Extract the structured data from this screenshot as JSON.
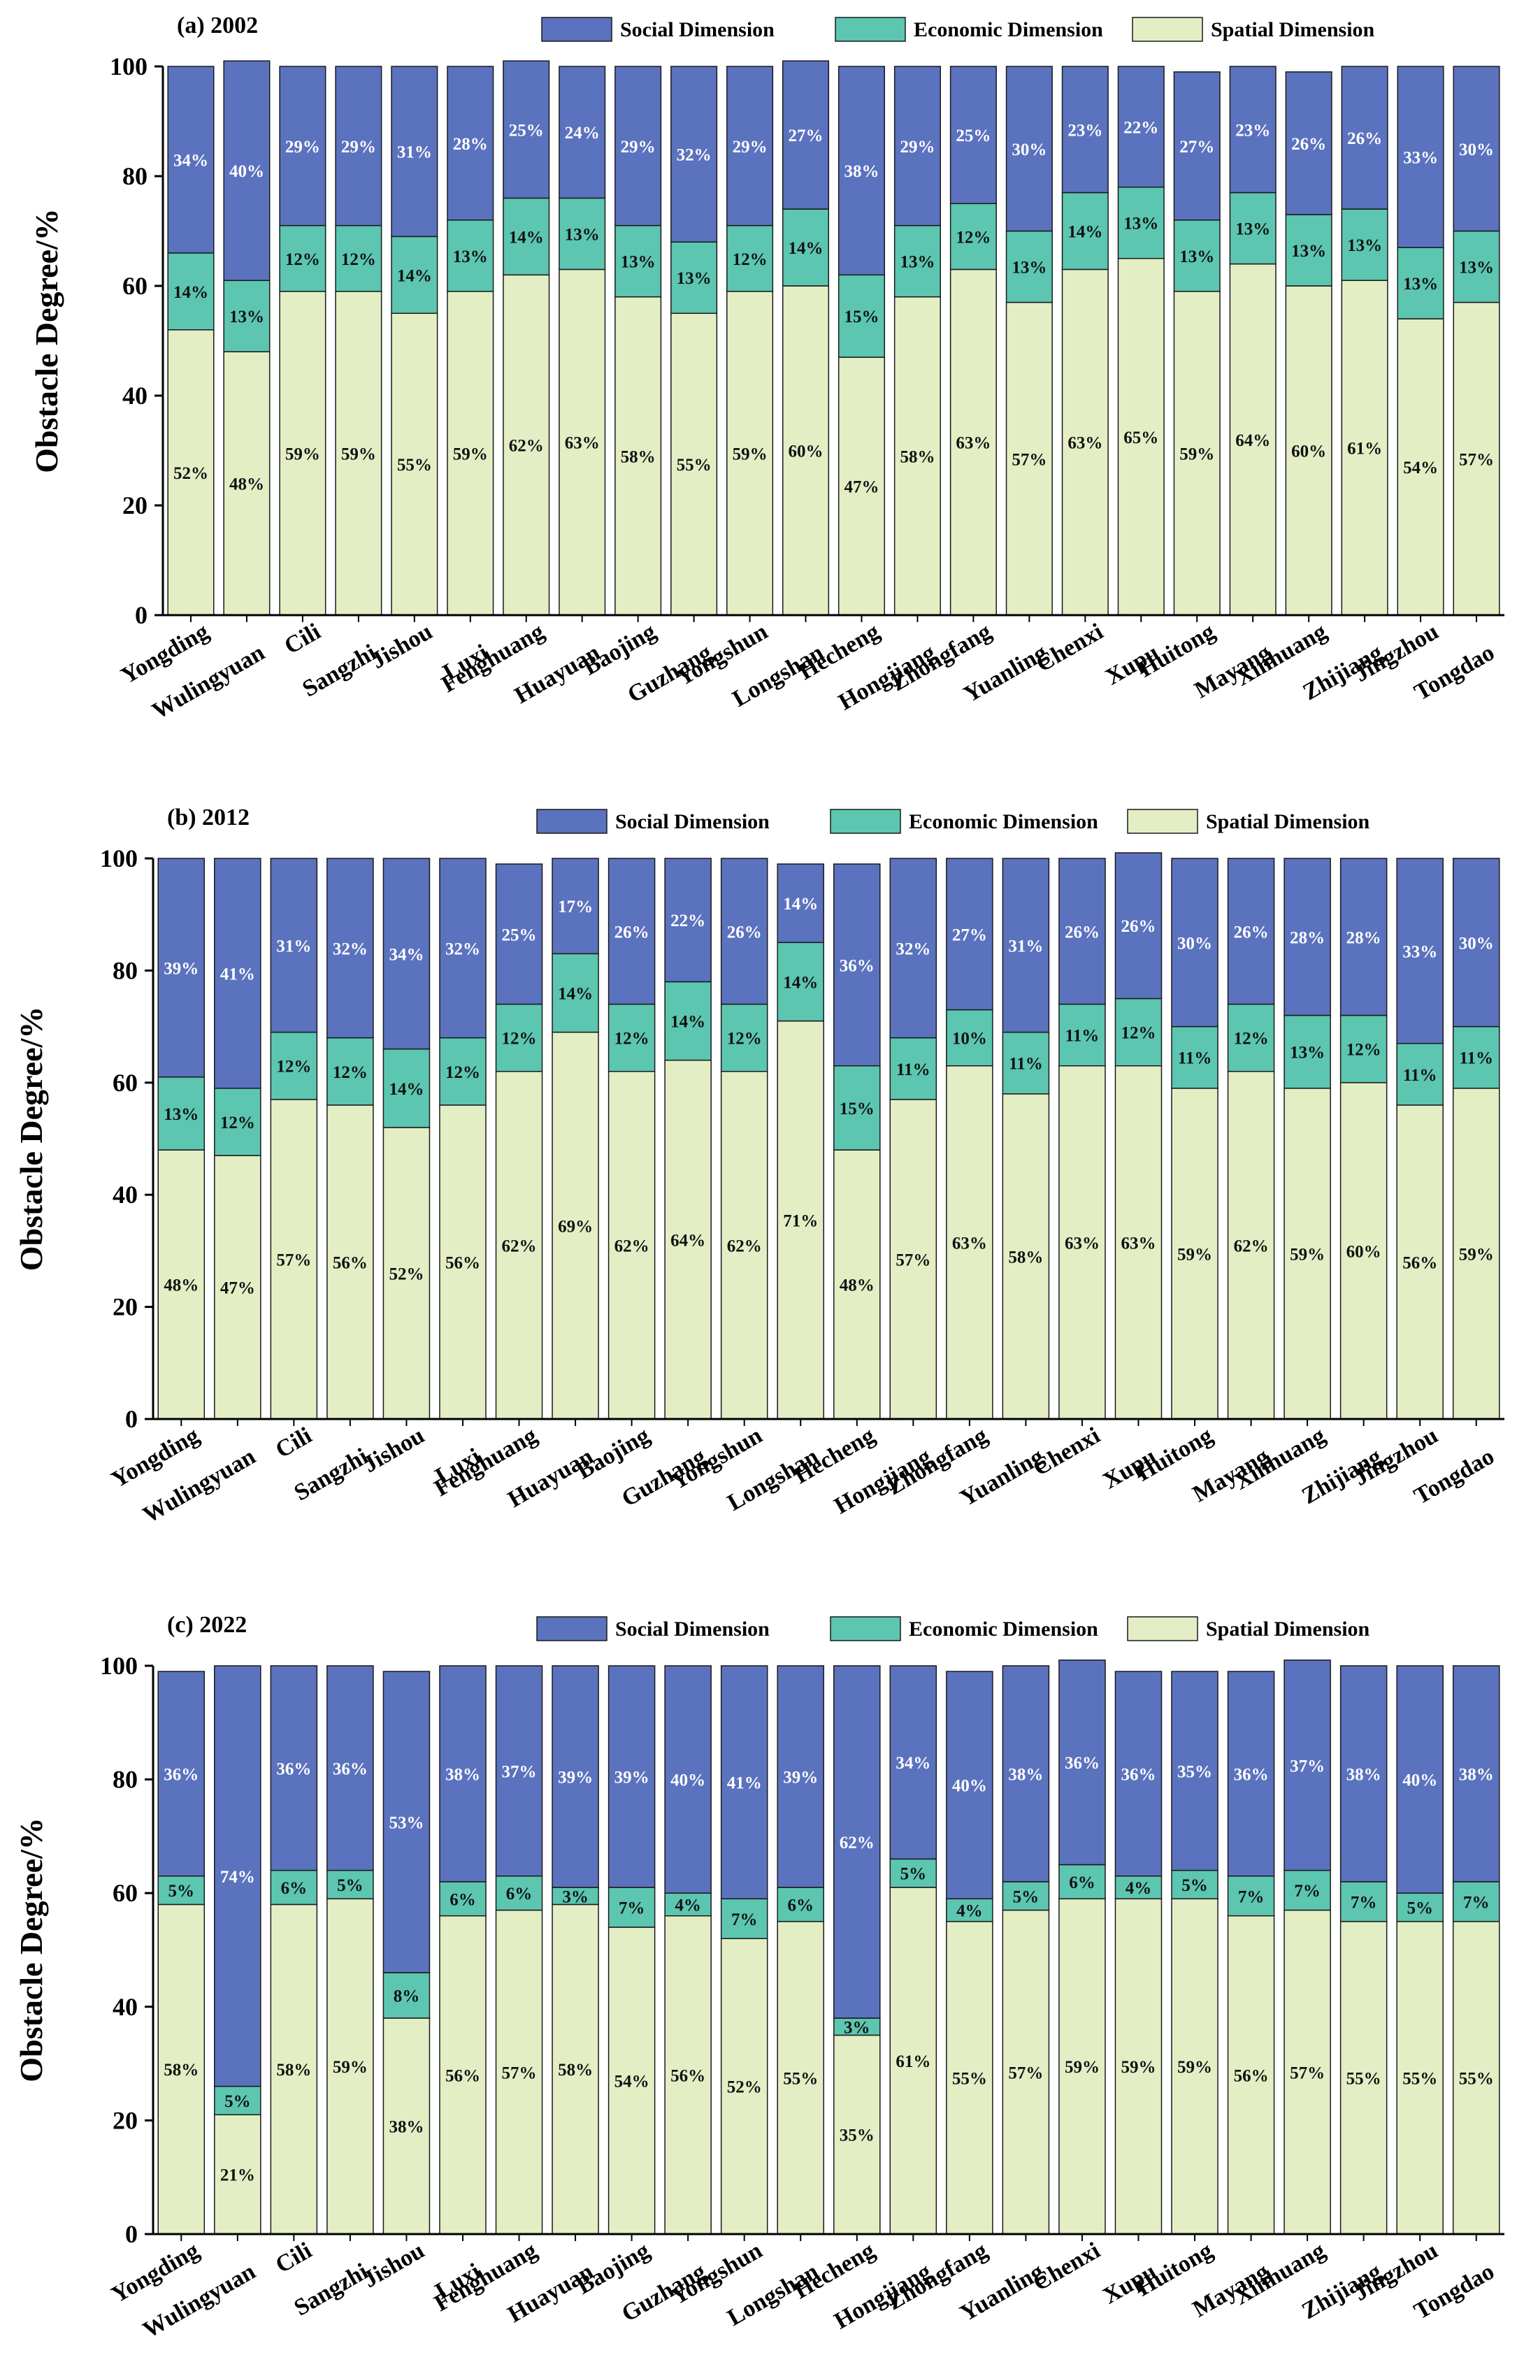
{
  "colors": {
    "social": "#5b72be",
    "economic": "#5cc6b0",
    "spatial": "#e4eec5",
    "outline": "#1a1a1a",
    "social_text": "#ffffff",
    "economic_text": "#111111",
    "spatial_text": "#111111"
  },
  "chart_data": [
    {
      "type": "bar",
      "stacked": true,
      "title": "(a) 2002",
      "ylabel": "Obstacle Degree/%",
      "ylim": [
        0,
        100
      ],
      "yticks": [
        "0",
        "20",
        "40",
        "60",
        "80",
        "100"
      ],
      "legend": [
        "Social Dimension",
        "Economic Dimension",
        "Spatial Dimension"
      ],
      "legend_position": "top-center",
      "categories": [
        "Yongding",
        "Wulingyuan",
        "Cili",
        "Sangzhi",
        "Jishou",
        "Luxi",
        "Fenghuang",
        "Huayuan",
        "Baojing",
        "Guzhang",
        "Yongshun",
        "Longshan",
        "Hecheng",
        "Hongjiang",
        "Zhongfang",
        "Yuanling",
        "Chenxi",
        "Xupu",
        "Huitong",
        "Mayang",
        "Xinhuang",
        "Zhijiang",
        "Jingzhou",
        "Tongdao"
      ],
      "series": [
        {
          "name": "Spatial Dimension",
          "values": [
            52,
            48,
            59,
            59,
            55,
            59,
            62,
            63,
            58,
            55,
            59,
            60,
            47,
            58,
            63,
            57,
            63,
            65,
            59,
            64,
            60,
            61,
            54,
            57
          ],
          "labels": [
            "52%",
            "48%",
            "59%",
            "59%",
            "55%",
            "59%",
            "62%",
            "63%",
            "58%",
            "55%",
            "59%",
            "60%",
            "47%",
            "58%",
            "63%",
            "57%",
            "63%",
            "65%",
            "59%",
            "64%",
            "60%",
            "61%",
            "54%",
            "57%"
          ]
        },
        {
          "name": "Economic Dimension",
          "values": [
            14,
            13,
            12,
            12,
            14,
            13,
            14,
            13,
            13,
            13,
            12,
            14,
            15,
            13,
            12,
            13,
            14,
            13,
            13,
            13,
            13,
            13,
            13,
            13
          ],
          "labels": [
            "14%",
            "13%",
            "12%",
            "12%",
            "14%",
            "13%",
            "14%",
            "13%",
            "13%",
            "13%",
            "12%",
            "14%",
            "15%",
            "13%",
            "12%",
            "13%",
            "14%",
            "13%",
            "13%",
            "13%",
            "13%",
            "13%",
            "13%",
            "13%"
          ]
        },
        {
          "name": "Social Dimension",
          "values": [
            34,
            40,
            29,
            29,
            31,
            28,
            25,
            24,
            29,
            32,
            29,
            27,
            38,
            29,
            25,
            30,
            23,
            22,
            27,
            23,
            26,
            26,
            33,
            30
          ],
          "labels": [
            "34%",
            "40%",
            "29%",
            "29%",
            "31%",
            "28%",
            "25%",
            "24%",
            "29%",
            "32%",
            "29%",
            "27%",
            "38%",
            "29%",
            "25%",
            "30%",
            "23%",
            "22%",
            "27%",
            "23%",
            "26%",
            "26%",
            "33%",
            "30%"
          ]
        }
      ]
    },
    {
      "type": "bar",
      "stacked": true,
      "title": "(b) 2012",
      "ylabel": "Obstacle Degree/%",
      "ylim": [
        0,
        100
      ],
      "yticks": [
        "0",
        "20",
        "40",
        "60",
        "80",
        "100"
      ],
      "legend": [
        "Social Dimension",
        "Economic Dimension",
        "Spatial Dimension"
      ],
      "legend_position": "top-center",
      "categories": [
        "Yongding",
        "Wulingyuan",
        "Cili",
        "Sangzhi",
        "Jishou",
        "Luxi",
        "Fenghuang",
        "Huayuan",
        "Baojing",
        "Guzhang",
        "Yongshun",
        "Longshan",
        "Hecheng",
        "Hongjiang",
        "Zhongfang",
        "Yuanling",
        "Chenxi",
        "Xupu",
        "Huitong",
        "Mayang",
        "Xinhuang",
        "Zhijiang",
        "Jingzhou",
        "Tongdao"
      ],
      "series": [
        {
          "name": "Spatial Dimension",
          "values": [
            48,
            47,
            57,
            56,
            52,
            56,
            62,
            69,
            62,
            64,
            62,
            71,
            48,
            57,
            63,
            58,
            63,
            63,
            59,
            62,
            59,
            60,
            56,
            59
          ],
          "labels": [
            "48%",
            "47%",
            "57%",
            "56%",
            "52%",
            "56%",
            "62%",
            "69%",
            "62%",
            "64%",
            "62%",
            "71%",
            "48%",
            "57%",
            "63%",
            "58%",
            "63%",
            "63%",
            "59%",
            "62%",
            "59%",
            "60%",
            "56%",
            "59%"
          ]
        },
        {
          "name": "Economic Dimension",
          "values": [
            13,
            12,
            12,
            12,
            14,
            12,
            12,
            14,
            12,
            14,
            12,
            14,
            15,
            11,
            10,
            11,
            11,
            12,
            11,
            12,
            13,
            12,
            11,
            11
          ],
          "labels": [
            "13%",
            "12%",
            "12%",
            "12%",
            "14%",
            "12%",
            "12%",
            "14%",
            "12%",
            "14%",
            "12%",
            "14%",
            "15%",
            "11%",
            "10%",
            "11%",
            "11%",
            "12%",
            "11%",
            "12%",
            "13%",
            "12%",
            "11%",
            "11%"
          ]
        },
        {
          "name": "Social Dimension",
          "values": [
            39,
            41,
            31,
            32,
            34,
            32,
            25,
            17,
            26,
            22,
            26,
            14,
            36,
            32,
            27,
            31,
            26,
            26,
            30,
            26,
            28,
            28,
            33,
            30
          ],
          "labels": [
            "39%",
            "41%",
            "31%",
            "32%",
            "34%",
            "32%",
            "25%",
            "17%",
            "26%",
            "22%",
            "26%",
            "14%",
            "36%",
            "32%",
            "27%",
            "31%",
            "26%",
            "26%",
            "30%",
            "26%",
            "28%",
            "28%",
            "33%",
            "30%"
          ]
        }
      ]
    },
    {
      "type": "bar",
      "stacked": true,
      "title": "(c) 2022",
      "ylabel": "Obstacle Degree/%",
      "ylim": [
        0,
        100
      ],
      "yticks": [
        "0",
        "20",
        "40",
        "60",
        "80",
        "100"
      ],
      "legend": [
        "Social Dimension",
        "Economic Dimension",
        "Spatial Dimension"
      ],
      "legend_position": "top-center",
      "categories": [
        "Yongding",
        "Wulingyuan",
        "Cili",
        "Sangzhi",
        "Jishou",
        "Luxi",
        "Fenghuang",
        "Huayuan",
        "Baojing",
        "Guzhang",
        "Yongshun",
        "Longshan",
        "Hecheng",
        "Hongjiang",
        "Zhongfang",
        "Yuanling",
        "Chenxi",
        "Xupu",
        "Huitong",
        "Mayang",
        "Xinhuang",
        "Zhijiang",
        "Jingzhou",
        "Tongdao"
      ],
      "series": [
        {
          "name": "Spatial Dimension",
          "values": [
            58,
            21,
            58,
            59,
            38,
            56,
            57,
            58,
            54,
            56,
            52,
            55,
            35,
            61,
            55,
            57,
            59,
            59,
            59,
            56,
            57,
            55,
            55,
            55
          ],
          "labels": [
            "58%",
            "21%",
            "58%",
            "59%",
            "38%",
            "56%",
            "57%",
            "58%",
            "54%",
            "56%",
            "52%",
            "55%",
            "35%",
            "61%",
            "55%",
            "57%",
            "59%",
            "59%",
            "59%",
            "56%",
            "57%",
            "55%",
            "55%",
            "55%"
          ]
        },
        {
          "name": "Economic Dimension",
          "values": [
            5,
            5,
            6,
            5,
            8,
            6,
            6,
            3,
            7,
            4,
            7,
            6,
            3,
            5,
            4,
            5,
            6,
            4,
            5,
            7,
            7,
            7,
            5,
            7
          ],
          "labels": [
            "5%",
            "5%",
            "6%",
            "5%",
            "8%",
            "6%",
            "6%",
            "3%",
            "7%",
            "4%",
            "7%",
            "6%",
            "3%",
            "5%",
            "4%",
            "5%",
            "6%",
            "4%",
            "5%",
            "7%",
            "7%",
            "7%",
            "5%",
            "7%"
          ]
        },
        {
          "name": "Social Dimension",
          "values": [
            36,
            74,
            36,
            36,
            53,
            38,
            37,
            39,
            39,
            40,
            41,
            39,
            62,
            34,
            40,
            38,
            36,
            36,
            35,
            36,
            37,
            38,
            40,
            38
          ],
          "labels": [
            "36%",
            "74%",
            "36%",
            "36%",
            "53%",
            "38%",
            "37%",
            "39%",
            "39%",
            "40%",
            "41%",
            "39%",
            "62%",
            "34%",
            "40%",
            "38%",
            "36%",
            "36%",
            "35%",
            "36%",
            "37%",
            "38%",
            "40%",
            "38%"
          ]
        }
      ]
    }
  ]
}
